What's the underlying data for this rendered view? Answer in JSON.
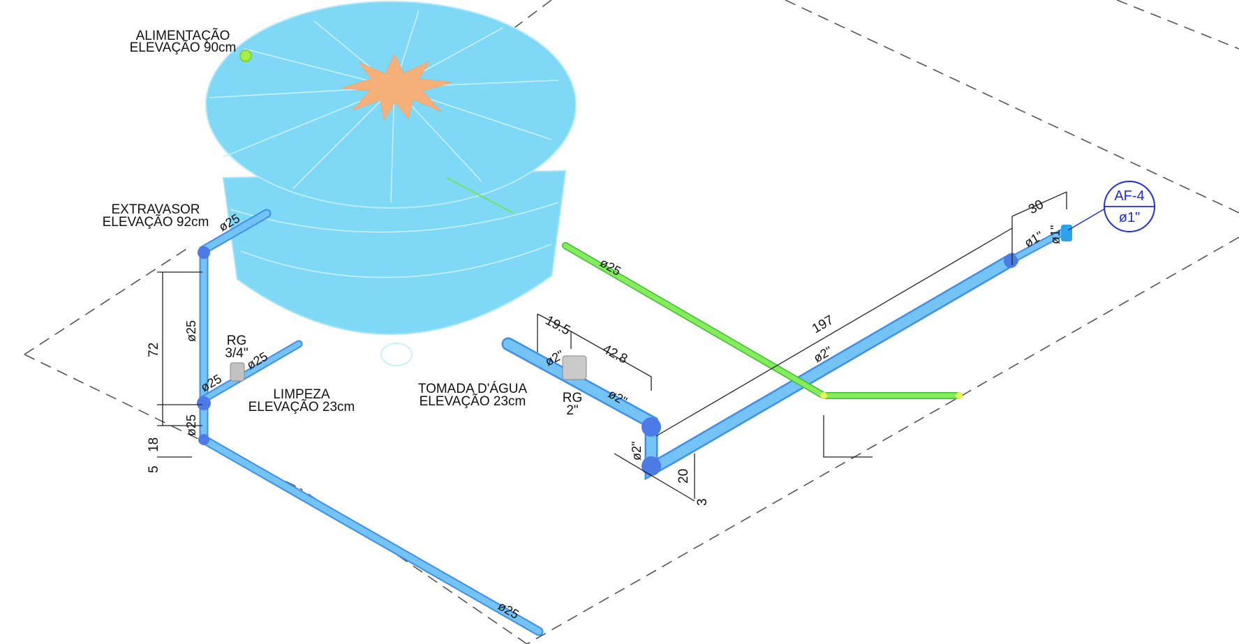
{
  "labels": {
    "alimentacao": [
      "ALIMENTAÇÃO",
      "ELEVAÇÃO 90cm"
    ],
    "extravasor": [
      "EXTRAVASOR",
      "ELEVAÇÃO 92cm"
    ],
    "limpeza": [
      "LIMPEZA",
      "ELEVAÇÃO 23cm"
    ],
    "tomada": [
      "TOMADA D'ÁGUA",
      "ELEVAÇÃO 23cm"
    ],
    "rg_small": [
      "RG",
      "3/4\""
    ],
    "rg_big": [
      "RG",
      "2\""
    ]
  },
  "pipe_diameters": {
    "d25": "ø25",
    "d2": "ø2\"",
    "d1": "ø1\""
  },
  "dimensions": {
    "d72": "72",
    "d18": "18",
    "d5": "5",
    "d19_5": "19.5",
    "d42_8": "42.8",
    "d197": "197",
    "d30": "30",
    "d20": "20",
    "d3": "3"
  },
  "tag": {
    "code": "AF-4",
    "diameter": "ø1\""
  },
  "colors": {
    "tank": "#7fd8f6",
    "tank_lid_star": "#f5b07a",
    "pipe_cold": "#66b9f2",
    "pipe_overflow_feed": "#72e35a",
    "tag": "#1f2de0"
  }
}
